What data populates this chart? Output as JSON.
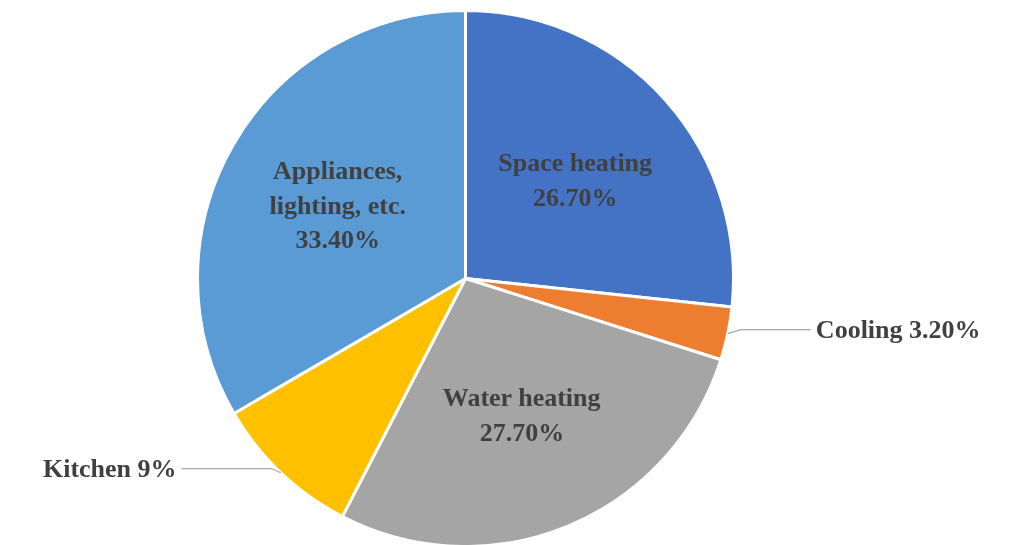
{
  "chart_data": {
    "type": "pie",
    "categories": [
      "Space heating",
      "Cooling",
      "Water heating",
      "Kitchen",
      "Appliances, lighting, etc."
    ],
    "values": [
      26.7,
      3.2,
      27.7,
      9,
      33.4
    ],
    "value_labels": [
      "26.70%",
      "3.20%",
      "27.70%",
      "9%",
      "33.40%"
    ],
    "colors": [
      "#4472c4",
      "#ed7d31",
      "#a5a5a5",
      "#ffc000",
      "#5b9bd5"
    ]
  }
}
